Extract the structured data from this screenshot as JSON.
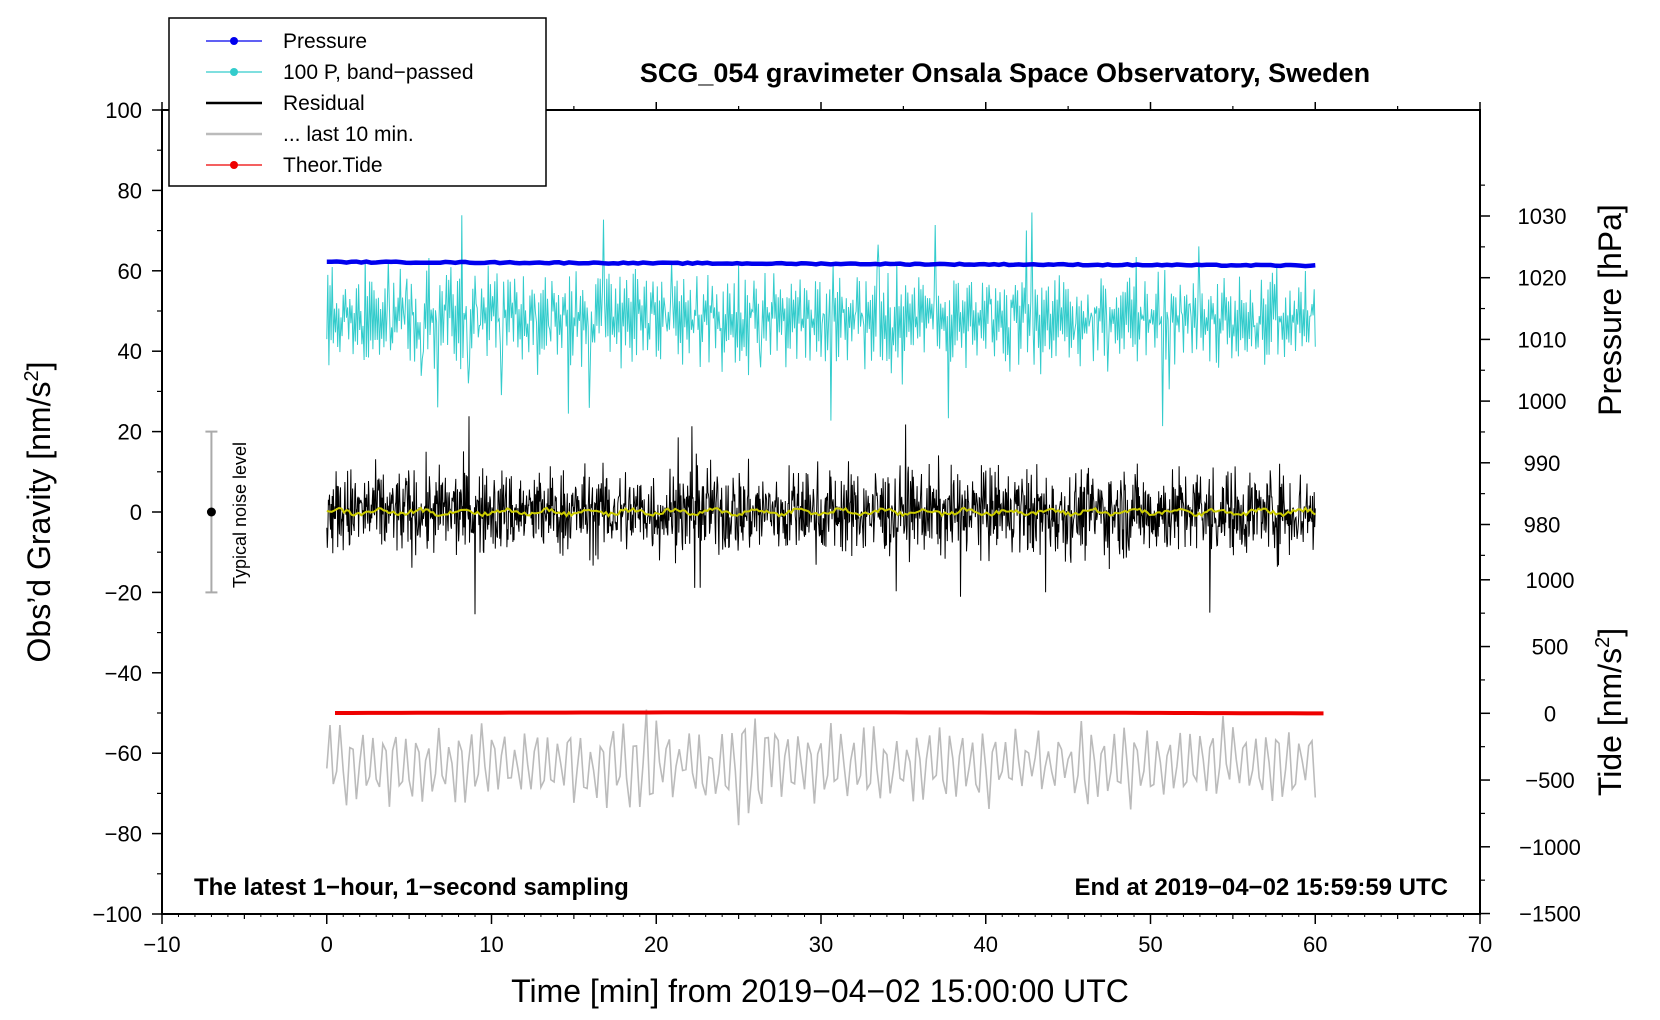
{
  "chart_data": {
    "type": "line",
    "title": "SCG_054 gravimeter Onsala Space Observatory, Sweden",
    "xlabel": "Time [min] from 2019−04−02 15:00:00 UTC",
    "ylabel": "Obs’d Gravity [nm/s",
    "ylabel_sup": "2",
    "ylabel_end": "]",
    "xlim": [
      -10,
      70
    ],
    "ylim": [
      -100,
      100
    ],
    "x_ticks": [
      -10,
      0,
      10,
      20,
      30,
      40,
      50,
      60,
      70
    ],
    "x_tick_labels": [
      "−10",
      "0",
      "10",
      "20",
      "30",
      "40",
      "50",
      "60",
      "70"
    ],
    "y_ticks": [
      -100,
      -80,
      -60,
      -40,
      -20,
      0,
      20,
      40,
      60,
      80,
      100
    ],
    "y_tick_labels": [
      "−100",
      "−80",
      "−60",
      "−40",
      "−20",
      "0",
      "20",
      "40",
      "60",
      "80",
      "100"
    ],
    "right_axis_pressure": {
      "label": "Pressure [hPa]",
      "ticks": [
        980,
        990,
        1000,
        1010,
        1020,
        1030
      ],
      "tick_labels": [
        "980",
        "990",
        "1000",
        "1010",
        "1020",
        "1030"
      ]
    },
    "right_axis_tide": {
      "label": "Tide [nm/s",
      "label_sup": "2",
      "label_end": "]",
      "ticks": [
        -1500,
        -1000,
        -500,
        0,
        500,
        1000
      ],
      "tick_labels": [
        "−1500",
        "−1000",
        "−500",
        "0",
        "500",
        "1000"
      ]
    },
    "series": [
      {
        "name": "Pressure",
        "color": "#0000ee",
        "style": "line-dot",
        "x_range": [
          0,
          60
        ],
        "y_start": 62.2,
        "y_end": 61.3
      },
      {
        "name": "100 P, band−passed",
        "color": "#33cccc",
        "style": "line-dot",
        "x_range": [
          0,
          60
        ],
        "center": 48,
        "amplitude": 13
      },
      {
        "name": "Residual",
        "color": "#000000",
        "style": "line",
        "x_range": [
          0,
          60
        ],
        "center": 0,
        "amplitude": 12
      },
      {
        "name": "... last 10 min.",
        "color": "#bbbbbb",
        "style": "line",
        "x_range": [
          0,
          60
        ],
        "center": -63,
        "amplitude": 9
      },
      {
        "name": "Theor.Tide",
        "color": "#ee0000",
        "style": "line-dot",
        "x_range": [
          0.5,
          60.5
        ],
        "y_start": -50,
        "y_end": -50.1
      }
    ],
    "smoothed_residual": {
      "color": "#cccc00",
      "center": 0,
      "amplitude": 1
    },
    "noise_indicator": {
      "label": "Typical noise level",
      "x": -7,
      "center": 0,
      "range": [
        -20,
        20
      ]
    },
    "annotations": {
      "left": "The latest 1−hour, 1−second sampling",
      "right": "End at 2019−04−02 15:59:59 UTC"
    }
  }
}
